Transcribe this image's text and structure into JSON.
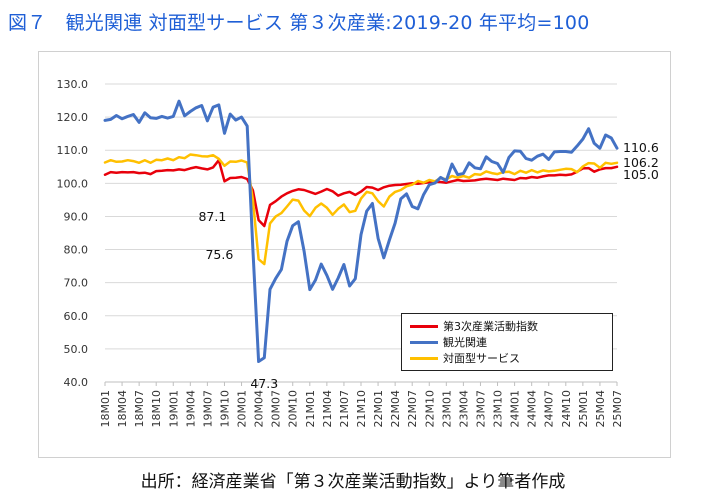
{
  "figure": {
    "title": "図７　観光関連 対面型サービス 第３次産業:2019-20 年平均=100",
    "source": "出所：経済産業省「第３次産業活動指数」より筆者作成"
  },
  "chart_data": {
    "type": "line",
    "title": "",
    "xlabel": "",
    "ylabel": "",
    "ylim": [
      40,
      130
    ],
    "yticks": [
      "40.0",
      "50.0",
      "60.0",
      "70.0",
      "80.0",
      "90.0",
      "100.0",
      "110.0",
      "120.0",
      "130.0"
    ],
    "grid": "horizontal",
    "legend_position": "lower-right",
    "x": [
      "18M01",
      "18M02",
      "18M03",
      "18M04",
      "18M05",
      "18M06",
      "18M07",
      "18M08",
      "18M09",
      "18M10",
      "18M11",
      "18M12",
      "19M01",
      "19M02",
      "19M03",
      "19M04",
      "19M05",
      "19M06",
      "19M07",
      "19M08",
      "19M09",
      "19M10",
      "19M11",
      "19M12",
      "20M01",
      "20M02",
      "20M03",
      "20M04",
      "20M05",
      "20M06",
      "20M07",
      "20M08",
      "20M09",
      "20M10",
      "20M11",
      "20M12",
      "21M01",
      "21M02",
      "21M03",
      "21M04",
      "21M05",
      "21M06",
      "21M07",
      "21M08",
      "21M09",
      "21M10",
      "21M11",
      "21M12",
      "22M01",
      "22M02",
      "22M03",
      "22M04",
      "22M05",
      "22M06",
      "22M07",
      "22M08",
      "22M09",
      "22M10",
      "22M11",
      "22M12",
      "23M01",
      "23M02",
      "23M03",
      "23M04",
      "23M05",
      "23M06",
      "23M07",
      "23M08",
      "23M09",
      "23M10",
      "23M11",
      "23M12",
      "24M01",
      "24M02",
      "24M03",
      "24M04",
      "24M05",
      "24M06",
      "24M07",
      "24M08",
      "24M09",
      "24M10",
      "24M11",
      "24M12",
      "25M01",
      "25M02",
      "25M03",
      "25M04",
      "25M05",
      "25M06",
      "25M07"
    ],
    "xtick_labels": [
      "18M01",
      "18M04",
      "18M07",
      "18M10",
      "19M01",
      "19M04",
      "19M07",
      "19M10",
      "20M01",
      "20M04",
      "20M07",
      "20M10",
      "21M01",
      "21M04",
      "21M07",
      "21M10",
      "22M01",
      "22M04",
      "22M07",
      "22M10",
      "23M01",
      "23M04",
      "23M07",
      "23M10",
      "24M01",
      "24M04",
      "24M07",
      "24M10",
      "25M01",
      "25M04",
      "25M07"
    ],
    "series": [
      {
        "name": "第3次産業活動指数",
        "color": "#e8000b",
        "values": [
          102.6,
          103.4,
          103.2,
          103.4,
          103.3,
          103.4,
          103.1,
          103.2,
          102.8,
          103.7,
          103.8,
          104.0,
          103.9,
          104.2,
          104.0,
          104.5,
          104.9,
          104.5,
          104.2,
          104.8,
          107.0,
          100.6,
          101.6,
          101.7,
          101.9,
          101.3,
          97.9,
          88.9,
          87.1,
          93.5,
          94.6,
          96.0,
          97.0,
          97.7,
          98.2,
          98.0,
          97.4,
          96.8,
          97.5,
          98.3,
          97.6,
          96.3,
          97.0,
          97.4,
          96.5,
          97.5,
          98.9,
          98.7,
          98.0,
          98.8,
          99.3,
          99.5,
          99.6,
          99.8,
          100.0,
          99.9,
          100.1,
          100.3,
          100.5,
          100.4,
          100.2,
          100.6,
          101.0,
          100.7,
          100.8,
          100.9,
          101.2,
          101.4,
          101.2,
          101.0,
          101.4,
          101.2,
          101.0,
          101.6,
          101.5,
          101.9,
          101.7,
          102.1,
          102.4,
          102.4,
          102.6,
          102.5,
          102.7,
          103.5,
          104.5,
          104.6,
          103.5,
          104.2,
          104.6,
          104.6,
          105.0
        ]
      },
      {
        "name": "観光関連",
        "color": "#4472c4",
        "values": [
          119.0,
          119.3,
          120.5,
          119.5,
          120.2,
          120.8,
          118.4,
          121.3,
          119.8,
          119.6,
          120.2,
          119.7,
          120.2,
          124.8,
          120.4,
          121.7,
          122.8,
          123.5,
          118.9,
          123.0,
          123.7,
          115.1,
          120.9,
          119.1,
          120.0,
          117.3,
          80.0,
          46.2,
          47.3,
          68.0,
          71.3,
          74.0,
          82.5,
          87.2,
          88.4,
          79.5,
          67.9,
          70.8,
          75.6,
          72.2,
          68.0,
          71.4,
          75.5,
          69.0,
          71.2,
          84.5,
          91.6,
          93.9,
          83.4,
          77.5,
          82.9,
          88.0,
          95.3,
          96.8,
          93.0,
          92.3,
          96.6,
          99.6,
          100.1,
          101.8,
          100.8,
          105.8,
          102.6,
          103.0,
          106.2,
          104.7,
          104.4,
          108.0,
          106.6,
          106.0,
          103.3,
          107.8,
          109.8,
          109.7,
          107.5,
          107.0,
          108.2,
          108.8,
          107.2,
          109.5,
          109.6,
          109.6,
          109.4,
          111.3,
          113.4,
          116.5,
          112.1,
          110.6,
          114.6,
          113.7,
          110.6
        ]
      },
      {
        "name": "対面型サービス",
        "color": "#ffc000",
        "values": [
          106.3,
          107.0,
          106.5,
          106.6,
          107.0,
          106.7,
          106.2,
          107.0,
          106.2,
          107.1,
          107.0,
          107.5,
          107.0,
          107.9,
          107.6,
          108.7,
          108.5,
          108.2,
          108.1,
          108.5,
          107.4,
          105.3,
          106.6,
          106.5,
          106.9,
          106.3,
          95.0,
          77.1,
          75.6,
          87.9,
          90.0,
          91.0,
          93.0,
          95.1,
          94.8,
          91.8,
          90.1,
          92.6,
          93.9,
          92.6,
          90.5,
          92.3,
          93.6,
          91.3,
          91.7,
          95.4,
          97.4,
          97.0,
          94.6,
          93.0,
          96.0,
          97.4,
          98.0,
          99.1,
          99.6,
          100.7,
          100.2,
          101.0,
          100.6,
          101.6,
          101.2,
          102.2,
          101.7,
          102.2,
          101.7,
          102.8,
          102.6,
          103.6,
          103.1,
          102.8,
          103.4,
          103.5,
          102.8,
          103.8,
          103.2,
          104.0,
          103.3,
          103.9,
          103.6,
          103.8,
          104.1,
          104.4,
          104.3,
          103.4,
          105.1,
          106.1,
          106.0,
          104.7,
          106.2,
          105.9,
          106.2
        ]
      }
    ],
    "annotations": [
      {
        "text": "110.6",
        "series": "観光関連",
        "x": "25M07"
      },
      {
        "text": "106.2",
        "series": "対面型サービス",
        "x": "25M07"
      },
      {
        "text": "105.0",
        "series": "第3次産業活動指数",
        "x": "25M07"
      },
      {
        "text": "87.1",
        "series": "第3次産業活動指数",
        "x": "20M05"
      },
      {
        "text": "75.6",
        "series": "対面型サービス",
        "x": "20M05"
      },
      {
        "text": "47.3",
        "series": "観光関連",
        "x": "20M05"
      }
    ]
  }
}
